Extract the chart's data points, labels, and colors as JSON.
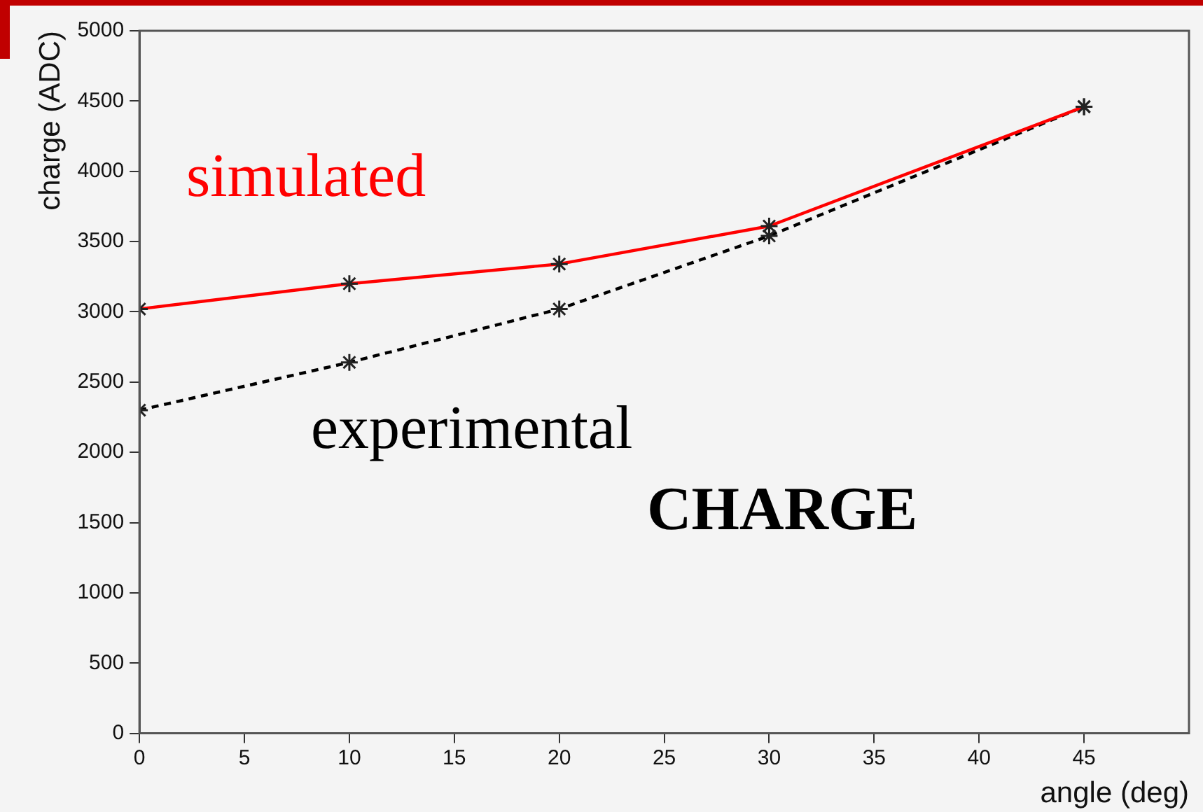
{
  "chart_data": {
    "type": "line",
    "xlabel": "angle (deg)",
    "ylabel": "charge (ADC)",
    "xlim": [
      0,
      50
    ],
    "xticks": [
      0,
      5,
      10,
      15,
      20,
      25,
      30,
      35,
      40,
      45
    ],
    "ylim": [
      0,
      5000
    ],
    "yticks": [
      0,
      500,
      1000,
      1500,
      2000,
      2500,
      3000,
      3500,
      4000,
      4500,
      5000
    ],
    "x": [
      0,
      10,
      20,
      30,
      45
    ],
    "series": [
      {
        "name": "simulated",
        "color": "#ff0000",
        "line_style": "solid",
        "values": [
          3020,
          3200,
          3340,
          3610,
          4460
        ]
      },
      {
        "name": "experimental",
        "color": "#000000",
        "line_style": "dashed",
        "values": [
          2300,
          2640,
          3020,
          3540,
          4460
        ]
      }
    ],
    "marker": "cross",
    "grid": false,
    "legend": "top left",
    "annotations": [
      "CHARGE"
    ]
  }
}
